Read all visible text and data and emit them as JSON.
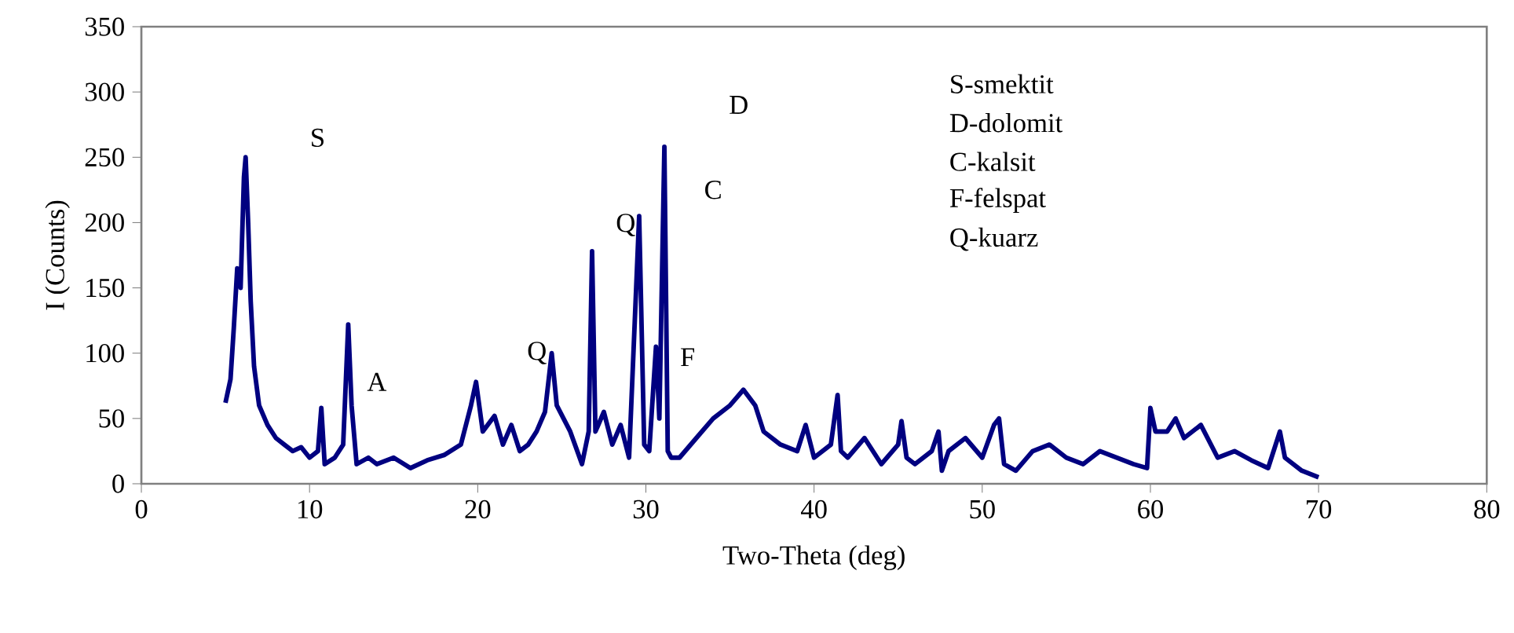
{
  "chart_data": {
    "type": "line",
    "xlabel": "Two-Theta (deg)",
    "ylabel": "I (Counts)",
    "color": "#000080",
    "x": [
      5.0,
      5.3,
      5.5,
      5.7,
      5.9,
      6.1,
      6.2,
      6.35,
      6.5,
      6.7,
      7.0,
      7.5,
      8.0,
      8.5,
      9.0,
      9.5,
      10.0,
      10.5,
      10.7,
      10.9,
      11.5,
      12.0,
      12.3,
      12.5,
      12.8,
      13.5,
      14.0,
      15.0,
      16.0,
      17.0,
      18.0,
      19.0,
      19.6,
      19.9,
      20.3,
      21.0,
      21.5,
      22.0,
      22.5,
      23.0,
      23.5,
      24.0,
      24.4,
      24.7,
      25.5,
      26.2,
      26.6,
      26.8,
      27.0,
      27.5,
      28.0,
      28.5,
      29.0,
      29.6,
      29.9,
      30.2,
      30.6,
      30.8,
      31.1,
      31.3,
      31.5,
      32.0,
      33.0,
      34.0,
      35.0,
      35.8,
      36.5,
      37.0,
      38.0,
      39.0,
      39.5,
      40.0,
      41.0,
      41.4,
      41.6,
      42.0,
      43.0,
      44.0,
      45.0,
      45.2,
      45.5,
      46.0,
      47.0,
      47.4,
      47.6,
      48.0,
      49.0,
      50.0,
      50.7,
      51.0,
      51.3,
      52.0,
      53.0,
      54.0,
      55.0,
      56.0,
      57.0,
      58.0,
      59.0,
      59.8,
      60.0,
      60.3,
      61.0,
      61.5,
      62.0,
      63.0,
      64.0,
      65.0,
      66.0,
      67.0,
      67.7,
      68.0,
      69.0,
      70.0
    ],
    "values": [
      62,
      80,
      120,
      165,
      150,
      235,
      250,
      200,
      140,
      90,
      60,
      45,
      35,
      30,
      25,
      28,
      20,
      25,
      58,
      15,
      20,
      30,
      122,
      60,
      15,
      20,
      15,
      20,
      12,
      18,
      22,
      30,
      60,
      78,
      40,
      52,
      30,
      45,
      25,
      30,
      40,
      55,
      100,
      60,
      40,
      15,
      40,
      178,
      40,
      55,
      30,
      45,
      20,
      205,
      30,
      25,
      105,
      50,
      258,
      25,
      20,
      20,
      35,
      50,
      60,
      72,
      60,
      40,
      30,
      25,
      45,
      20,
      30,
      68,
      25,
      20,
      35,
      15,
      30,
      48,
      20,
      15,
      25,
      40,
      10,
      25,
      35,
      20,
      45,
      50,
      15,
      10,
      25,
      30,
      20,
      15,
      25,
      20,
      15,
      12,
      58,
      40,
      40,
      50,
      35,
      45,
      20,
      25,
      18,
      12,
      40,
      20,
      10,
      5
    ],
    "xlim": [
      0,
      80
    ],
    "ylim": [
      0,
      350
    ],
    "xticks": [
      0,
      10,
      20,
      30,
      40,
      50,
      60,
      70,
      80
    ],
    "yticks": [
      0,
      50,
      100,
      150,
      200,
      250,
      300,
      350
    ],
    "annotations": [
      "S",
      "A",
      "Q",
      "Q",
      "F",
      "C",
      "D",
      "S-smektit",
      "D-dolomit",
      "C-kalsit",
      "F-felspat",
      "Q-kuarz"
    ]
  }
}
